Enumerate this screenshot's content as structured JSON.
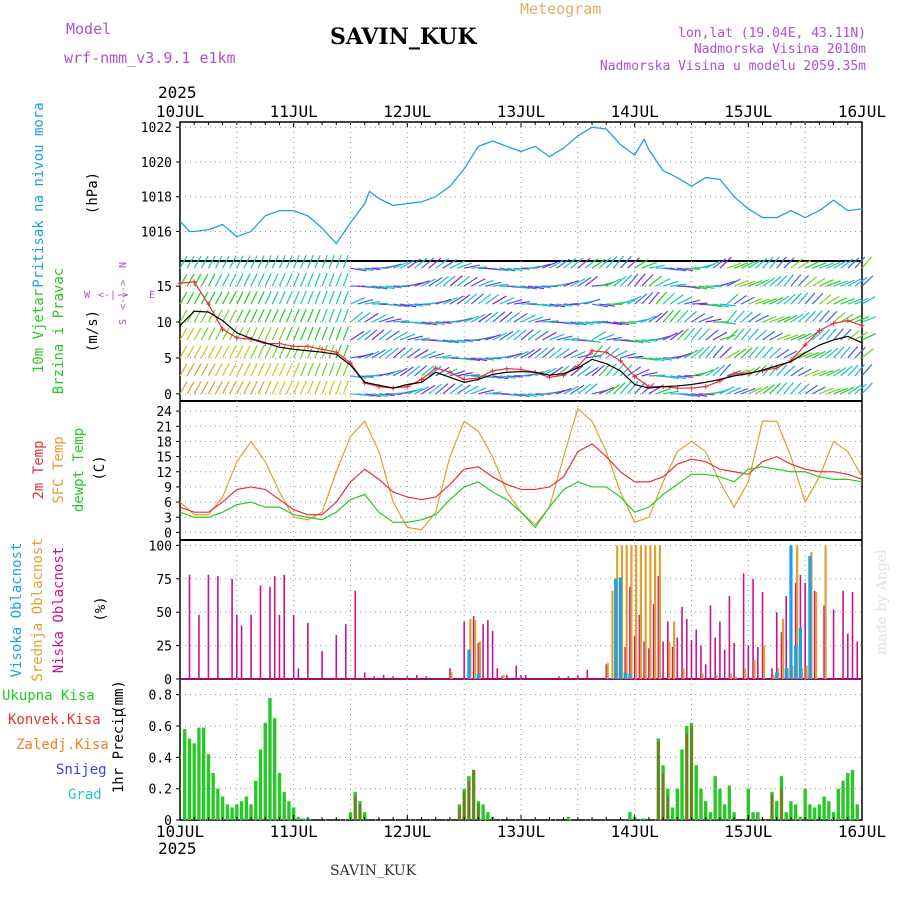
{
  "header": {
    "model_label": "Model",
    "model_name": "wrf-nmm_v3.9.1 e1km",
    "station": "SAVIN_KUK",
    "meteogram": "Meteogram",
    "lonlat": "lon,lat (19.04E, 43.11N)",
    "altitude": "Nadmorska Visina 2010m",
    "model_altitude": "Nadmorska Visina u modelu 2059.35m"
  },
  "footer": {
    "station": "SAVIN_KUK",
    "watermark": "made by Angel"
  },
  "colors": {
    "pressure": "#1ea0e6",
    "temp2m": "#e6323c",
    "sfc": "#e0a030",
    "dewpt": "#28c828",
    "high_cloud": "#1ea0e6",
    "mid_cloud": "#e0a030",
    "low_cloud": "#c8148c",
    "precip_total": "#28c828",
    "precip_conv": "#e6323c",
    "precip_frz": "#f08020",
    "precip_snow": "#3c3ce6",
    "precip_grad": "#28c8c8",
    "wind_speed": "#e6323c",
    "wind_gust": "#000000"
  },
  "chart_data": [
    {
      "type": "line",
      "name": "pressure",
      "top_year": "2025",
      "bottom_year": "2025",
      "x_tick_labels": [
        "10JUL",
        "11JUL",
        "12JUL",
        "13JUL",
        "14JUL",
        "15JUL",
        "16JUL"
      ],
      "ylabel_main": "Pritisak na nivou mora",
      "ylabel_unit": "(hPa)",
      "y_ticks": [
        1016,
        1018,
        1020,
        1022
      ],
      "ylim": [
        1014.3,
        1022.3
      ],
      "x_hours": [
        0,
        2,
        3,
        6,
        9,
        12,
        15,
        18,
        21,
        24,
        27,
        30,
        33,
        36,
        39,
        40,
        42,
        45,
        48,
        51,
        54,
        57,
        60,
        63,
        66,
        69,
        72,
        75,
        78,
        81,
        84,
        87,
        90,
        93,
        96,
        98,
        99,
        102,
        105,
        108,
        111,
        114,
        117,
        120,
        123,
        126,
        129,
        132,
        135,
        138,
        141,
        144
      ],
      "values": [
        1016.6,
        1016.0,
        1016.0,
        1016.1,
        1016.4,
        1015.7,
        1016.0,
        1016.9,
        1017.2,
        1017.2,
        1016.9,
        1016.2,
        1015.3,
        1016.5,
        1017.6,
        1018.3,
        1017.9,
        1017.5,
        1017.6,
        1017.7,
        1018.0,
        1018.6,
        1019.6,
        1020.9,
        1021.2,
        1020.9,
        1020.6,
        1020.9,
        1020.3,
        1020.8,
        1021.5,
        1022.0,
        1021.9,
        1021.0,
        1020.4,
        1021.3,
        1020.7,
        1019.5,
        1019.1,
        1018.6,
        1019.1,
        1019.0,
        1018.0,
        1017.3,
        1016.8,
        1016.8,
        1017.2,
        1016.8,
        1017.2,
        1017.8,
        1017.2,
        1017.3
      ]
    },
    {
      "type": "line",
      "name": "wind",
      "ylabel_main": "10m Vjetar",
      "ylabel_sub": "Brzina i Pravac",
      "ylabel_unit": "(m/s)",
      "compass": [
        "W",
        "<-|->",
        "E",
        "S",
        "<-|->",
        "N"
      ],
      "y_ticks": [
        0,
        5,
        10,
        15
      ],
      "ylim": [
        -1,
        18.5
      ],
      "x_hours": [
        0,
        3,
        6,
        9,
        12,
        15,
        18,
        21,
        24,
        27,
        30,
        33,
        36,
        39,
        42,
        45,
        48,
        51,
        54,
        57,
        60,
        63,
        66,
        69,
        72,
        75,
        78,
        81,
        84,
        87,
        90,
        93,
        96,
        99,
        102,
        105,
        108,
        111,
        114,
        117,
        120,
        123,
        126,
        129,
        132,
        135,
        138,
        141,
        144
      ],
      "series": [
        {
          "name": "speed",
          "values": [
            15.4,
            15.6,
            12.5,
            9.0,
            7.8,
            7.6,
            7.0,
            7.0,
            6.6,
            6.6,
            6.2,
            5.8,
            4.3,
            1.5,
            1.0,
            0.8,
            1.0,
            2.0,
            3.6,
            3.0,
            2.0,
            2.2,
            3.2,
            3.5,
            3.4,
            3.0,
            2.3,
            2.6,
            3.8,
            6.0,
            5.8,
            4.6,
            2.4,
            1.0,
            1.0,
            0.8,
            0.8,
            1.0,
            1.8,
            2.8,
            2.9,
            3.2,
            3.6,
            4.6,
            6.8,
            8.8,
            9.8,
            10.2,
            9.5
          ]
        },
        {
          "name": "gust",
          "values": [
            9.5,
            11.5,
            11.4,
            10.2,
            8.5,
            7.7,
            7.1,
            6.5,
            6.2,
            6.0,
            5.8,
            5.5,
            4.0,
            1.6,
            1.2,
            0.8,
            1.3,
            1.6,
            3.0,
            2.3,
            1.6,
            2.0,
            2.7,
            3.0,
            3.1,
            3.0,
            2.6,
            2.8,
            3.6,
            4.8,
            4.2,
            3.2,
            1.3,
            0.8,
            1.0,
            1.1,
            1.3,
            1.6,
            2.0,
            2.5,
            2.8,
            3.3,
            3.9,
            4.5,
            5.7,
            6.8,
            7.5,
            8.0,
            7.1
          ]
        }
      ]
    },
    {
      "type": "line",
      "name": "temperature",
      "ylabel_lines": [
        "2m Temp",
        "SFC Temp",
        "dewpt Temp"
      ],
      "ylabel_unit": "(C)",
      "y_ticks": [
        0,
        3,
        6,
        9,
        12,
        15,
        18,
        21,
        24
      ],
      "ylim": [
        -1.5,
        26
      ],
      "x_hours": [
        0,
        3,
        6,
        9,
        12,
        15,
        18,
        21,
        24,
        27,
        30,
        33,
        36,
        39,
        42,
        45,
        48,
        51,
        54,
        57,
        60,
        63,
        66,
        69,
        72,
        75,
        78,
        81,
        84,
        87,
        90,
        93,
        96,
        99,
        102,
        105,
        108,
        111,
        114,
        117,
        120,
        123,
        126,
        129,
        132,
        135,
        138,
        141,
        144
      ],
      "series": [
        {
          "name": "sfc",
          "values": [
            6,
            3.5,
            3.5,
            7,
            14,
            18,
            14,
            8,
            3,
            2.5,
            4,
            12,
            19,
            22,
            16,
            6,
            1,
            0.5,
            4,
            15,
            22,
            20,
            15,
            8,
            4,
            1.5,
            5,
            15,
            24.5,
            22,
            16,
            8,
            2,
            3,
            10,
            16,
            18,
            16,
            10,
            5,
            10,
            22,
            22,
            15,
            6,
            11,
            18,
            16,
            11
          ]
        },
        {
          "name": "t2m",
          "values": [
            5,
            4,
            4,
            6,
            8.5,
            9,
            8.5,
            6.5,
            4.5,
            3.5,
            3.5,
            6,
            10,
            12.5,
            10.5,
            8,
            7,
            6.5,
            7,
            9.5,
            12.5,
            13,
            11,
            9.5,
            8.5,
            8.5,
            9,
            11,
            16,
            17.5,
            15,
            12,
            10,
            10,
            11,
            13.5,
            14.5,
            14,
            12.5,
            12,
            11.5,
            14,
            15,
            13.5,
            12.5,
            12,
            12,
            11.5,
            10.5
          ]
        },
        {
          "name": "dewpt",
          "values": [
            4,
            3,
            3,
            4,
            5.5,
            6,
            5,
            5,
            3.5,
            3,
            2.5,
            4,
            6.5,
            7.5,
            4,
            2,
            2,
            2.5,
            3.5,
            6.5,
            9,
            10,
            8,
            6.5,
            4,
            1,
            5,
            8.5,
            10,
            9,
            9,
            7,
            4,
            5,
            7.5,
            9.5,
            11.5,
            11.5,
            11,
            10,
            12.5,
            13,
            12.5,
            12,
            12,
            11,
            10.5,
            10.5,
            10
          ]
        }
      ]
    },
    {
      "type": "bar",
      "name": "clouds",
      "ylabel_lines": [
        "Visoka Oblacnost",
        "Srednja Oblacnost",
        "Niska Oblacnost"
      ],
      "ylabel_unit": "(%)",
      "y_ticks": [
        0,
        25,
        50,
        75,
        100
      ],
      "ylim": [
        0,
        100
      ],
      "series": [
        {
          "name": "low",
          "x_hours": [
            2,
            4,
            6,
            8,
            11,
            12,
            13,
            15,
            17,
            19,
            20,
            21,
            22,
            24,
            25,
            27,
            30,
            33,
            35,
            37,
            39,
            41,
            43,
            45,
            48,
            50,
            52,
            57,
            60,
            62,
            63,
            64,
            65,
            66,
            67,
            68,
            69,
            71,
            72,
            73,
            80,
            82,
            84,
            86,
            90,
            92,
            93,
            94,
            95,
            96,
            97,
            98,
            99,
            100,
            101,
            102,
            103,
            104,
            105,
            106,
            107,
            108,
            109,
            110,
            111,
            112,
            113,
            114,
            115,
            116,
            117,
            119,
            120,
            121,
            122,
            123,
            125,
            126,
            127,
            128,
            129,
            130,
            131,
            132,
            133,
            134,
            136,
            138,
            140,
            141,
            142,
            143
          ],
          "values": [
            78,
            48,
            78,
            77,
            75,
            48,
            40,
            48,
            70,
            69,
            77,
            48,
            78,
            48,
            8,
            42,
            21,
            33,
            41,
            66,
            5,
            2,
            3,
            2,
            2,
            3,
            2,
            8,
            43,
            47,
            27,
            41,
            44,
            36,
            8,
            2,
            3,
            10,
            3,
            3,
            2,
            2,
            3,
            7,
            11,
            60,
            46,
            24,
            69,
            32,
            48,
            28,
            23,
            56,
            77,
            28,
            43,
            24,
            31,
            54,
            45,
            29,
            37,
            25,
            11,
            55,
            31,
            43,
            22,
            62,
            27,
            79,
            25,
            75,
            24,
            65,
            8,
            50,
            35,
            62,
            47,
            72,
            78,
            72,
            70,
            66,
            55,
            52,
            66,
            34,
            65,
            28
          ]
        },
        {
          "name": "mid",
          "x_hours": [
            57,
            61,
            62,
            63,
            68,
            90,
            91,
            92,
            93,
            94,
            95,
            96,
            97,
            98,
            99,
            100,
            101,
            103,
            104,
            106,
            110,
            113,
            116,
            117,
            119,
            121,
            123,
            125,
            126,
            127,
            128,
            129,
            130,
            131,
            132,
            133,
            134,
            136
          ],
          "values": [
            5,
            45,
            44,
            28,
            3,
            12,
            66,
            100,
            100,
            100,
            100,
            100,
            100,
            100,
            100,
            100,
            100,
            28,
            43,
            8,
            4,
            3,
            4,
            2,
            8,
            14,
            25,
            3,
            8,
            45,
            8,
            10,
            100,
            8,
            10,
            95,
            65,
            100
          ]
        },
        {
          "name": "high",
          "x_hours": [
            61,
            63,
            92,
            93,
            94,
            95,
            126,
            128,
            129,
            130,
            131,
            133
          ],
          "values": [
            22,
            4,
            75,
            76,
            5,
            4,
            5,
            8,
            100,
            25,
            38,
            92
          ]
        }
      ]
    },
    {
      "type": "bar",
      "name": "precip",
      "legend": [
        "Ukupna Kisa",
        "Konvek.Kisa",
        "Zaledj.Kisa",
        "Snijeg",
        "Grad"
      ],
      "ylabel_main": "1hr Precip",
      "ylabel_unit": "(mm)",
      "y_ticks": [
        0,
        0.2,
        0.4,
        0.6,
        0.8
      ],
      "ylim": [
        0,
        0.9
      ],
      "x_tick_labels": [
        "10JUL",
        "11JUL",
        "12JUL",
        "13JUL",
        "14JUL",
        "15JUL",
        "16JUL"
      ],
      "series": [
        {
          "name": "total",
          "x_hours": [
            1,
            2,
            3,
            4,
            5,
            6,
            7,
            8,
            9,
            10,
            11,
            12,
            13,
            14,
            15,
            16,
            17,
            18,
            19,
            20,
            21,
            22,
            23,
            24,
            25,
            26,
            27,
            36,
            37,
            38,
            39,
            59,
            60,
            61,
            62,
            63,
            64,
            65,
            66,
            82,
            95,
            96,
            98,
            101,
            102,
            103,
            104,
            105,
            106,
            107,
            108,
            109,
            110,
            111,
            112,
            113,
            114,
            115,
            116,
            117,
            120,
            121,
            122,
            125,
            126,
            127,
            128,
            129,
            130,
            131,
            132,
            133,
            134,
            135,
            136,
            137,
            138,
            139,
            140,
            141,
            142,
            143
          ],
          "values": [
            0.58,
            0.52,
            0.49,
            0.59,
            0.59,
            0.42,
            0.3,
            0.2,
            0.15,
            0.1,
            0.08,
            0.1,
            0.12,
            0.15,
            0.1,
            0.25,
            0.45,
            0.62,
            0.78,
            0.65,
            0.3,
            0.18,
            0.12,
            0.08,
            0.02,
            0.01,
            0.01,
            0.05,
            0.18,
            0.12,
            0.05,
            0.1,
            0.2,
            0.28,
            0.32,
            0.12,
            0.1,
            0.05,
            0.02,
            0.02,
            0.05,
            0.02,
            0.01,
            0.52,
            0.35,
            0.2,
            0.08,
            0.2,
            0.45,
            0.6,
            0.62,
            0.35,
            0.2,
            0.12,
            0.05,
            0.28,
            0.2,
            0.1,
            0.22,
            0.05,
            0.2,
            0.05,
            0.05,
            0.18,
            0.12,
            0.28,
            0.05,
            0.12,
            0.1,
            0.02,
            0.2,
            0.1,
            0.08,
            0.1,
            0.15,
            0.12,
            0.05,
            0.2,
            0.25,
            0.3,
            0.32,
            0.1
          ]
        },
        {
          "name": "conv",
          "x_hours": [
            37,
            38,
            59,
            60,
            61,
            62,
            63,
            101,
            102,
            103,
            107,
            108,
            125,
            127
          ],
          "values": [
            0.15,
            0.1,
            0.08,
            0.18,
            0.25,
            0.32,
            0.1,
            0.5,
            0.3,
            0.15,
            0.55,
            0.6,
            0.16,
            0.2
          ]
        }
      ]
    }
  ]
}
